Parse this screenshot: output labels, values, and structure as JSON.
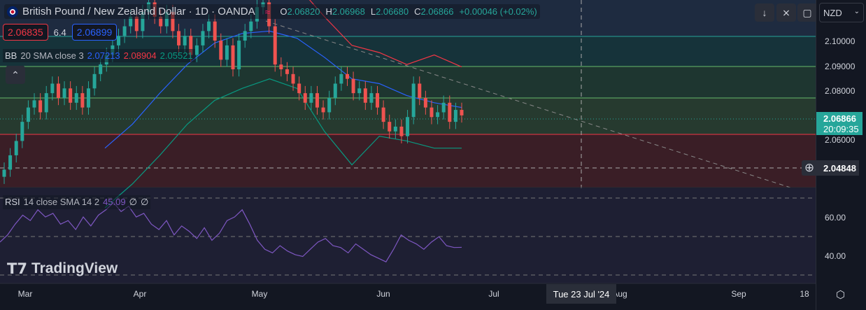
{
  "header": {
    "title": "British Pound / New Zealand Dollar · 1D · OANDA",
    "open_label": "O",
    "open": "2.06820",
    "high_label": "H",
    "high": "2.06968",
    "low_label": "L",
    "low": "2.06680",
    "close_label": "C",
    "close": "2.06866",
    "change": "+0.00046 (+0.02%)"
  },
  "quote": {
    "sell": "2.06835",
    "spread": "6.4",
    "buy": "2.06899"
  },
  "bb": {
    "label": "BB",
    "params": "20 SMA close 3",
    "basis": "2.07213",
    "upper": "2.08904",
    "lower": "2.05521"
  },
  "rsi": {
    "label": "RSI",
    "params": "14 close SMA 14 2",
    "value": "45.09",
    "v2": "∅",
    "v3": "∅"
  },
  "currency": "NZD",
  "price_axis": [
    "2.10000",
    "2.09000",
    "2.08000",
    "2.06000"
  ],
  "current_price": "2.06866",
  "countdown": "20:09:35",
  "crosshair_price": "2.04848",
  "rsi_axis": [
    "60.00",
    "40.00"
  ],
  "time_axis": [
    "Mar",
    "Apr",
    "May",
    "Jun",
    "Jul",
    "Aug",
    "Sep",
    "18"
  ],
  "crosshair_date": "Tue 23 Jul '24",
  "logo": "TradingView",
  "colors": {
    "up": "#26a69a",
    "down": "#ef5350",
    "bb_mid": "#2962ff",
    "bb_up": "#f23645",
    "bb_low": "#089981",
    "rsi": "#7e57c2"
  },
  "chart_data": {
    "type": "candlestick",
    "closes": [
      2.046,
      2.052,
      2.058,
      2.066,
      2.072,
      2.075,
      2.07,
      2.078,
      2.082,
      2.076,
      2.08,
      2.074,
      2.078,
      2.072,
      2.08,
      2.086,
      2.09,
      2.094,
      2.098,
      2.102,
      2.106,
      2.11,
      2.104,
      2.112,
      2.116,
      2.11,
      2.106,
      2.112,
      2.104,
      2.098,
      2.102,
      2.094,
      2.098,
      2.104,
      2.108,
      2.1,
      2.092,
      2.098,
      2.088,
      2.1,
      2.104,
      2.108,
      2.114,
      2.116,
      2.106,
      2.09,
      2.088,
      2.086,
      2.082,
      2.078,
      2.074,
      2.078,
      2.072,
      2.07,
      2.076,
      2.082,
      2.086,
      2.084,
      2.078,
      2.08,
      2.074,
      2.078,
      2.072,
      2.066,
      2.062,
      2.064,
      2.06,
      2.068,
      2.082,
      2.076,
      2.072,
      2.068,
      2.07,
      2.074,
      2.066,
      2.071,
      2.0687
    ],
    "bb_upper": [
      2.12,
      2.125,
      2.126,
      2.125,
      2.128,
      2.126,
      2.124,
      2.123,
      2.11,
      2.098,
      2.095,
      2.09,
      2.094,
      2.089
    ],
    "bb_mid": [
      2.055,
      2.065,
      2.078,
      2.09,
      2.099,
      2.103,
      2.104,
      2.101,
      2.093,
      2.084,
      2.082,
      2.077,
      2.074,
      2.072
    ],
    "bb_lower": [
      2.03,
      2.04,
      2.052,
      2.065,
      2.075,
      2.08,
      2.084,
      2.08,
      2.062,
      2.048,
      2.06,
      2.058,
      2.055,
      2.055
    ],
    "rsi": [
      48,
      52,
      58,
      63,
      60,
      66,
      62,
      64,
      58,
      60,
      55,
      62,
      57,
      63,
      66,
      70,
      65,
      68,
      62,
      64,
      58,
      55,
      60,
      52,
      57,
      54,
      50,
      56,
      49,
      53,
      60,
      62,
      66,
      58,
      49,
      44,
      42,
      46,
      43,
      41,
      40,
      44,
      48,
      50,
      46,
      45,
      42,
      47,
      44,
      41,
      39,
      37,
      44,
      52,
      49,
      47,
      44,
      48,
      51,
      46,
      45,
      45.09
    ],
    "price_range": [
      2.0385,
      2.117
    ],
    "rsi_range": [
      25,
      78
    ]
  }
}
